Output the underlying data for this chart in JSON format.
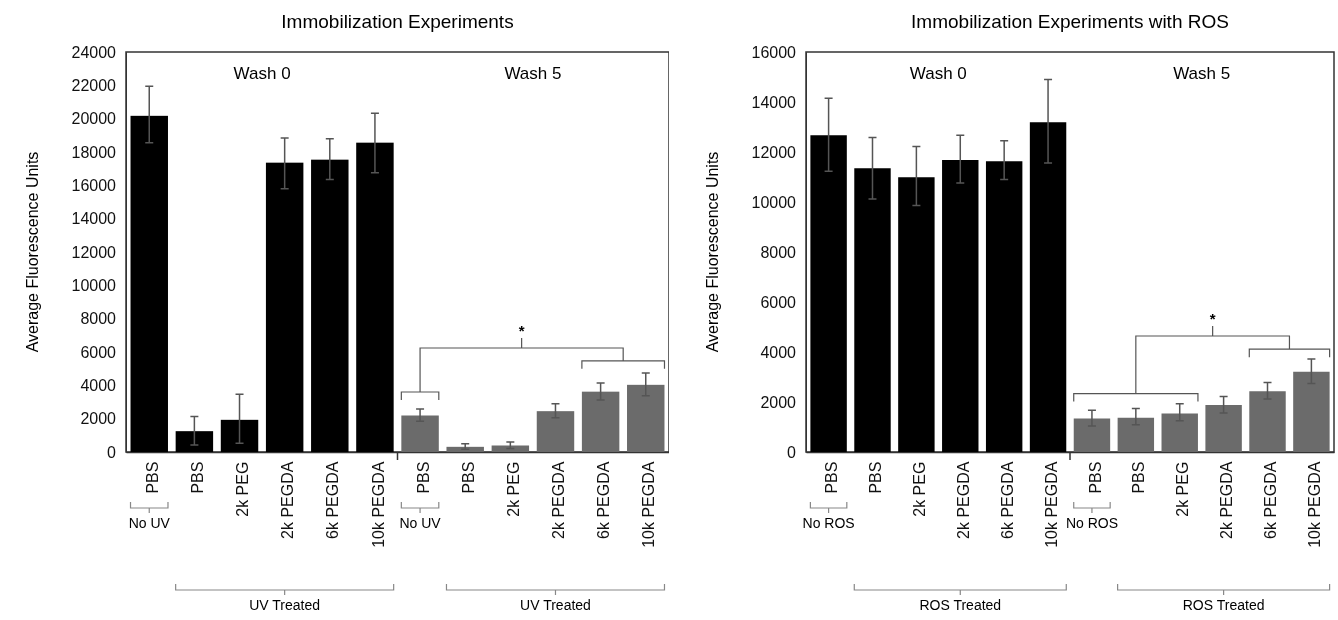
{
  "chart_data": [
    {
      "type": "bar",
      "title": "Immobilization Experiments",
      "ylabel": "Average Fluorescence Units",
      "categories": [
        "PBS",
        "PBS",
        "2k PEG",
        "2k PEGDA",
        "6k PEGDA",
        "10k PEGDA",
        "PBS",
        "PBS",
        "2k PEG",
        "2k PEGDA",
        "6k PEGDA",
        "10k PEGDA"
      ],
      "values": [
        20170,
        1250,
        1930,
        17360,
        17540,
        18560,
        2190,
        310,
        390,
        2450,
        3620,
        4030
      ],
      "errors": [
        [
          18560,
          21940
        ],
        [
          420,
          2130
        ],
        [
          520,
          3460
        ],
        [
          15800,
          18840
        ],
        [
          16350,
          18790
        ],
        [
          16760,
          20330
        ],
        [
          1850,
          2580
        ],
        [
          160,
          490
        ],
        [
          210,
          600
        ],
        [
          2060,
          2890
        ],
        [
          3120,
          4140
        ],
        [
          3380,
          4740
        ]
      ],
      "colors": [
        "#000000",
        "#000000",
        "#000000",
        "#000000",
        "#000000",
        "#000000",
        "#6b6b6b",
        "#6b6b6b",
        "#6b6b6b",
        "#6b6b6b",
        "#6b6b6b",
        "#6b6b6b"
      ],
      "ylim": [
        0,
        24000
      ],
      "yticks": [
        0,
        2000,
        4000,
        6000,
        8000,
        10000,
        12000,
        14000,
        16000,
        18000,
        20000,
        22000,
        24000
      ],
      "grid": false,
      "annotations": [
        "Wash 0",
        "Wash 5",
        "No UV",
        "UV Treated",
        "No UV",
        "UV Treated",
        "*"
      ]
    },
    {
      "type": "bar",
      "title": "Immobilization Experiments with ROS",
      "ylabel": "Average Fluorescence Units",
      "categories": [
        "PBS",
        "PBS",
        "2k PEG",
        "2k PEGDA",
        "6k PEGDA",
        "10k PEGDA",
        "PBS",
        "PBS",
        "2k PEG",
        "2k PEGDA",
        "6k PEGDA",
        "10k PEGDA"
      ],
      "values": [
        12670,
        11350,
        10990,
        11680,
        11630,
        13190,
        1340,
        1370,
        1540,
        1880,
        2430,
        3210
      ],
      "errors": [
        [
          11230,
          14150
        ],
        [
          10120,
          12580
        ],
        [
          9860,
          12220
        ],
        [
          10760,
          12670
        ],
        [
          10900,
          12450
        ],
        [
          11560,
          14900
        ],
        [
          1040,
          1670
        ],
        [
          1090,
          1740
        ],
        [
          1250,
          1930
        ],
        [
          1560,
          2220
        ],
        [
          2120,
          2780
        ],
        [
          2740,
          3720
        ]
      ],
      "colors": [
        "#000000",
        "#000000",
        "#000000",
        "#000000",
        "#000000",
        "#000000",
        "#6b6b6b",
        "#6b6b6b",
        "#6b6b6b",
        "#6b6b6b",
        "#6b6b6b",
        "#6b6b6b"
      ],
      "ylim": [
        0,
        16000
      ],
      "yticks": [
        0,
        2000,
        4000,
        6000,
        8000,
        10000,
        12000,
        14000,
        16000
      ],
      "grid": false,
      "annotations": [
        "Wash 0",
        "Wash 5",
        "No ROS",
        "ROS Treated",
        "No ROS",
        "ROS Treated",
        "*"
      ]
    }
  ]
}
